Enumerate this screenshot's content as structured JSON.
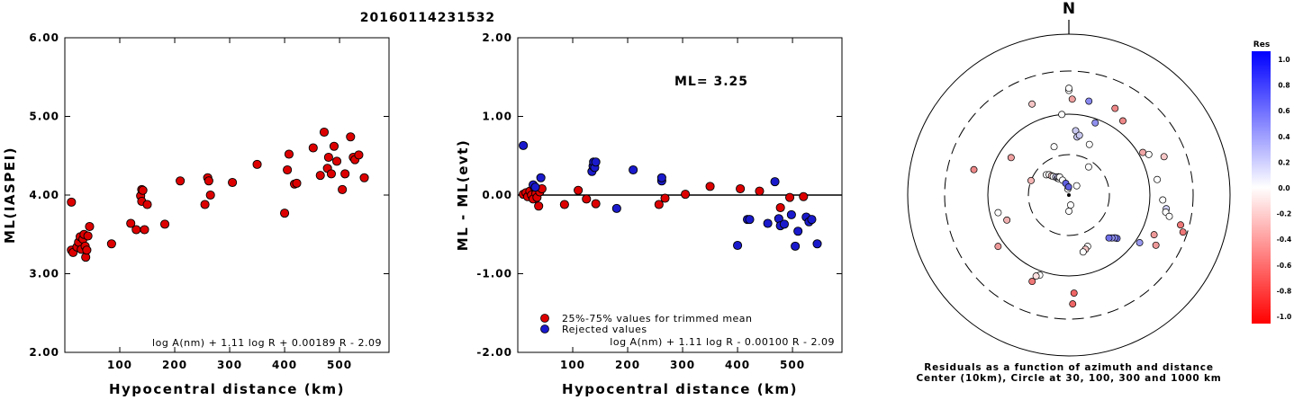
{
  "title": "20160114231532",
  "colors": {
    "trimmed": "#dd0000",
    "rejected": "#1a1acc"
  },
  "chart_data": [
    {
      "type": "scatter",
      "xlabel": "Hypocentral distance (km)",
      "ylabel": "ML(IASPEI)",
      "xlim": [
        0,
        590
      ],
      "ylim": [
        2.0,
        6.0
      ],
      "xticks": [
        100,
        200,
        300,
        400,
        500
      ],
      "yticks": [
        "2.00",
        "3.00",
        "4.00",
        "5.00",
        "6.00"
      ],
      "formula": "log A(nm) + 1.11 log R + 0.00189 R - 2.09",
      "series": [
        {
          "color": "#dd0000",
          "points": [
            [
              12,
              3.91
            ],
            [
              12,
              3.3
            ],
            [
              15,
              3.27
            ],
            [
              22,
              3.34
            ],
            [
              25,
              3.4
            ],
            [
              28,
              3.47
            ],
            [
              30,
              3.31
            ],
            [
              33,
              3.44
            ],
            [
              35,
              3.5
            ],
            [
              37,
              3.35
            ],
            [
              38,
              3.21
            ],
            [
              40,
              3.3
            ],
            [
              42,
              3.48
            ],
            [
              45,
              3.6
            ],
            [
              85,
              3.38
            ],
            [
              120,
              3.64
            ],
            [
              130,
              3.56
            ],
            [
              138,
              3.99
            ],
            [
              140,
              4.07
            ],
            [
              140,
              3.92
            ],
            [
              142,
              4.06
            ],
            [
              145,
              3.56
            ],
            [
              150,
              3.88
            ],
            [
              182,
              3.63
            ],
            [
              210,
              4.18
            ],
            [
              255,
              3.88
            ],
            [
              260,
              4.22
            ],
            [
              262,
              4.18
            ],
            [
              265,
              4.0
            ],
            [
              305,
              4.16
            ],
            [
              350,
              4.39
            ],
            [
              400,
              3.77
            ],
            [
              405,
              4.32
            ],
            [
              408,
              4.52
            ],
            [
              418,
              4.14
            ],
            [
              422,
              4.15
            ],
            [
              452,
              4.6
            ],
            [
              465,
              4.25
            ],
            [
              472,
              4.8
            ],
            [
              478,
              4.34
            ],
            [
              480,
              4.48
            ],
            [
              485,
              4.27
            ],
            [
              490,
              4.62
            ],
            [
              495,
              4.43
            ],
            [
              505,
              4.07
            ],
            [
              510,
              4.27
            ],
            [
              520,
              4.74
            ],
            [
              525,
              4.48
            ],
            [
              528,
              4.45
            ],
            [
              535,
              4.51
            ],
            [
              545,
              4.22
            ]
          ]
        }
      ]
    },
    {
      "type": "scatter",
      "xlabel": "Hypocentral distance (km)",
      "ylabel": "ML - ML(evt)",
      "xlim": [
        0,
        590
      ],
      "ylim": [
        -2.0,
        2.0
      ],
      "xticks": [
        100,
        200,
        300,
        400,
        500
      ],
      "yticks": [
        "-2.00",
        "-1.00",
        "0.00",
        "1.00",
        "2.00"
      ],
      "annotation": "ML=  3.25",
      "reference_line": 0.0,
      "formula": "log A(nm) + 1.11 log R - 0.00100 R - 2.09",
      "series": [
        {
          "name": "25%-75% values for trimmed mean",
          "color": "#dd0000",
          "points": [
            [
              10,
              0.01
            ],
            [
              15,
              0.03
            ],
            [
              18,
              -0.02
            ],
            [
              22,
              0.05
            ],
            [
              25,
              0.0
            ],
            [
              28,
              -0.05
            ],
            [
              30,
              0.1
            ],
            [
              33,
              0.02
            ],
            [
              35,
              -0.03
            ],
            [
              38,
              -0.14
            ],
            [
              40,
              0.04
            ],
            [
              44,
              0.08
            ],
            [
              85,
              -0.12
            ],
            [
              110,
              0.06
            ],
            [
              125,
              -0.05
            ],
            [
              142,
              -0.11
            ],
            [
              257,
              -0.12
            ],
            [
              268,
              -0.04
            ],
            [
              305,
              0.01
            ],
            [
              350,
              0.11
            ],
            [
              405,
              0.08
            ],
            [
              440,
              0.05
            ],
            [
              478,
              -0.16
            ],
            [
              495,
              -0.03
            ],
            [
              520,
              -0.02
            ]
          ]
        },
        {
          "name": "Rejected values",
          "color": "#1a1acc",
          "points": [
            [
              10,
              0.63
            ],
            [
              28,
              0.13
            ],
            [
              32,
              0.1
            ],
            [
              42,
              0.22
            ],
            [
              135,
              0.3
            ],
            [
              137,
              0.37
            ],
            [
              138,
              0.42
            ],
            [
              140,
              0.35
            ],
            [
              142,
              0.42
            ],
            [
              180,
              -0.17
            ],
            [
              210,
              0.32
            ],
            [
              262,
              0.18
            ],
            [
              262,
              0.22
            ],
            [
              400,
              -0.64
            ],
            [
              418,
              -0.31
            ],
            [
              422,
              -0.31
            ],
            [
              455,
              -0.36
            ],
            [
              468,
              0.17
            ],
            [
              475,
              -0.3
            ],
            [
              478,
              -0.39
            ],
            [
              485,
              -0.37
            ],
            [
              498,
              -0.25
            ],
            [
              505,
              -0.65
            ],
            [
              510,
              -0.46
            ],
            [
              525,
              -0.28
            ],
            [
              530,
              -0.34
            ],
            [
              535,
              -0.31
            ],
            [
              545,
              -0.62
            ]
          ]
        }
      ]
    }
  ],
  "polar": {
    "north_label": "N",
    "caption_line1": "Residuals as a function of azimuth and distance",
    "caption_line2": "Center (10km), Circle at 30, 100, 300 and 1000 km",
    "stations": [
      [
        0,
        2.55,
        "#ffffff"
      ],
      [
        2,
        2.35,
        "#f0a0a0"
      ],
      [
        6,
        1.6,
        "#c8c8f0"
      ],
      [
        8,
        1.45,
        "#c8c8f0"
      ],
      [
        10,
        1.5,
        "#c8c8f0"
      ],
      [
        12,
        2.35,
        "#8888f0"
      ],
      [
        36,
        2.25,
        "#ee8888"
      ],
      [
        60,
        2.1,
        "#f2a8a8"
      ],
      [
        63,
        2.2,
        "#ffffff"
      ],
      [
        68,
        2.5,
        "#f8c8c8"
      ],
      [
        80,
        2.2,
        "#ffffff"
      ],
      [
        93,
        2.3,
        "#ffffff"
      ],
      [
        98,
        2.4,
        "#d0d0f8"
      ],
      [
        100,
        2.4,
        "#ffffff"
      ],
      [
        102,
        2.5,
        "#ffffff"
      ],
      [
        105,
        2.8,
        "#ee7777"
      ],
      [
        108,
        2.9,
        "#ee7777"
      ],
      [
        115,
        2.3,
        "#ee9999"
      ],
      [
        120,
        2.45,
        "#ee9999"
      ],
      [
        124,
        2.1,
        "#9898f0"
      ],
      [
        132,
        1.6,
        "#7070e8"
      ],
      [
        133,
        1.55,
        "#8080e8"
      ],
      [
        135,
        1.5,
        "#9090ee"
      ],
      [
        137,
        1.45,
        "#7070e8"
      ],
      [
        160,
        1.35,
        "#ffffff"
      ],
      [
        163,
        1.4,
        "#f4c4c4"
      ],
      [
        166,
        1.45,
        "#ffffff"
      ],
      [
        177,
        2.4,
        "#ee6666"
      ],
      [
        178,
        2.65,
        "#ee6666"
      ],
      [
        200,
        2.1,
        "#ffffff"
      ],
      [
        202,
        2.15,
        "#ffe0e0"
      ],
      [
        203,
        2.3,
        "#ee7777"
      ],
      [
        234,
        2.15,
        "#ee9999"
      ],
      [
        248,
        1.65,
        "#f0b0b0"
      ],
      [
        256,
        1.8,
        "#ffffff"
      ],
      [
        285,
        2.4,
        "#ee8888"
      ],
      [
        291,
        1.0,
        "#f4b4b4"
      ],
      [
        303,
        1.7,
        "#f0a0a0"
      ],
      [
        312,
        0.75,
        "#ffffff"
      ],
      [
        316,
        0.7,
        "#ffffff"
      ],
      [
        318,
        0.64,
        "#f4c4c4"
      ],
      [
        320,
        0.6,
        "#ffffff"
      ],
      [
        324,
        0.55,
        "#d0d0f8"
      ],
      [
        326,
        0.5,
        "#c8c8f0"
      ],
      [
        328,
        0.48,
        "#ffffff"
      ],
      [
        330,
        0.52,
        "#d0d0f8"
      ],
      [
        333,
        0.5,
        "#ffffff"
      ],
      [
        337,
        0.4,
        "#ffffff"
      ],
      [
        338,
        2.4,
        "#f4c4c4"
      ],
      [
        343,
        1.25,
        "#ffffff"
      ],
      [
        345,
        0.3,
        "#6060e0"
      ],
      [
        350,
        0.15,
        "#ffffff"
      ],
      [
        355,
        2.0,
        "#ffffff"
      ],
      [
        358,
        0.2,
        "#6060e0"
      ],
      [
        360,
        2.6,
        "#ffffff"
      ],
      [
        35,
        0.85,
        "#ffffff"
      ],
      [
        20,
        1.9,
        "#9090ee"
      ],
      [
        22,
        1.35,
        "#ffffff"
      ],
      [
        28,
        2.4,
        "#ee8888"
      ],
      [
        180,
        0.4,
        "#ffffff"
      ],
      [
        170,
        0.25,
        "#ffffff"
      ],
      [
        40,
        0.3,
        "#ffffff"
      ]
    ]
  },
  "colorbar": {
    "title": "Res",
    "labels": [
      "1.0",
      "0.8",
      "0.6",
      "0.4",
      "0.2",
      "0.0",
      "-0.2",
      "-0.4",
      "-0.6",
      "-0.8",
      "-1.0"
    ],
    "top_color": "#0000ff",
    "bottom_color": "#ff0000"
  }
}
